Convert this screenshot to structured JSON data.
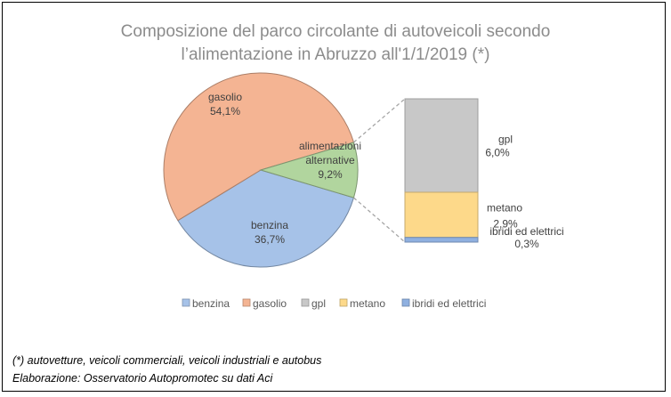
{
  "chart_data": {
    "type": "pie",
    "subtype": "pie-of-pie (stacked bar breakdown)",
    "title_lines": [
      "Composizione del parco circolante di autoveicoli secondo",
      "l’alimentazione in Abruzzo all'1/1/2019 (*)"
    ],
    "pie": [
      {
        "label": "benzina",
        "value": 36.7,
        "display": "36,7%",
        "color": "#a6c2e8"
      },
      {
        "label": "gasolio",
        "value": 54.1,
        "display": "54,1%",
        "color": "#f4b493"
      },
      {
        "label_lines": [
          "alimentazioni",
          "alternative"
        ],
        "value": 9.2,
        "display": "9,2%",
        "color": "#b1d59e"
      }
    ],
    "breakdown": [
      {
        "label": "gpl",
        "value": 6.0,
        "display": "6,0%",
        "color": "#c8c8c8"
      },
      {
        "label": "metano",
        "value": 2.9,
        "display": "2,9%",
        "color": "#fdd98a"
      },
      {
        "label": "ibridi ed elettrici",
        "value": 0.3,
        "display": "0,3%",
        "color": "#8fb0e0"
      }
    ],
    "legend": [
      {
        "label": "benzina",
        "color": "#a6c2e8"
      },
      {
        "label": "gasolio",
        "color": "#f4b493"
      },
      {
        "label": "gpl",
        "color": "#c8c8c8"
      },
      {
        "label": "metano",
        "color": "#fdd98a"
      },
      {
        "label": "ibridi ed elettrici",
        "color": "#8fb0e0"
      }
    ],
    "legend_position": "bottom"
  },
  "notes": [
    "(*) autovetture, veicoli commerciali, veicoli industriali e autobus",
    "Elaborazione: Osservatorio Autopromotec su dati Aci"
  ]
}
